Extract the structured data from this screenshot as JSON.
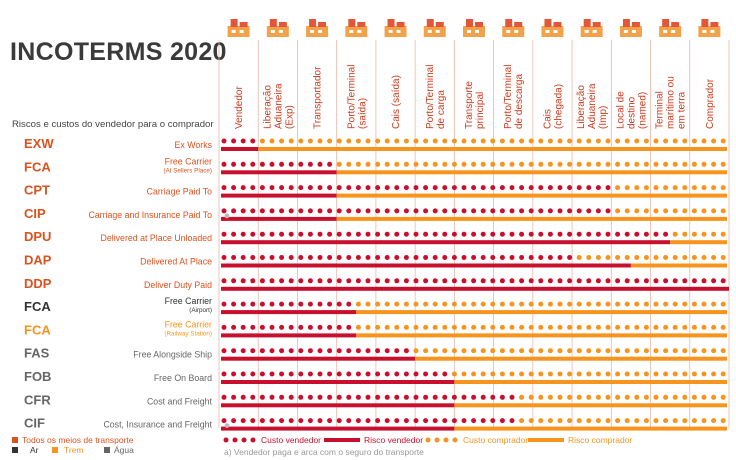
{
  "title": "INCOTERMS 2020",
  "subtitle": "Riscos e custos do vendedor para o comprador",
  "colors": {
    "seller": "#c8102e",
    "buyer": "#f7941d",
    "accent": "#d9531e",
    "dark": "#333333",
    "gray": "#666666"
  },
  "columns": [
    {
      "label": "Vendedor",
      "icon": "factory-icon"
    },
    {
      "label": "Liberação Aduaneira (Exp)",
      "icon": "customs-officer-icon"
    },
    {
      "label": "Transportador",
      "icon": "truck-icon"
    },
    {
      "label": "Porto/Terminal (saída)",
      "icon": "airplane-terminal-icon"
    },
    {
      "label": "Cais (saída)",
      "icon": "port-crane-icon"
    },
    {
      "label": "Porto/Terminal de carga",
      "icon": "ship-crane-icon"
    },
    {
      "label": "Transporte principal",
      "icon": "cargo-ship-icon"
    },
    {
      "label": "Porto/Terminal de descarga",
      "icon": "ship-unload-icon"
    },
    {
      "label": "Cais (chegada)",
      "icon": "port-crane-arrival-icon"
    },
    {
      "label": "Liberação Aduaneira (Imp)",
      "icon": "customs-import-icon"
    },
    {
      "label": "Local de destino (named)",
      "icon": "warehouse-icon"
    },
    {
      "label": "Terminal marítimo ou em terra",
      "icon": "train-icon"
    },
    {
      "label": "Comprador",
      "icon": "buyer-factory-icon"
    }
  ],
  "chart_data": {
    "type": "table",
    "title": "INCOTERMS 2020",
    "subtitle": "Riscos e custos do vendedor para o comprador",
    "rows": [
      {
        "code": "EXW",
        "name": "Ex Works",
        "sub": "",
        "transport": "all",
        "seller_cost_end": 1,
        "seller_risk_end": 1
      },
      {
        "code": "FCA",
        "name": "Free Carrier",
        "sub": "(At Sellers Place)",
        "transport": "all",
        "seller_cost_end": 3,
        "seller_risk_end": 3
      },
      {
        "code": "CPT",
        "name": "Carriage Paid To",
        "sub": "",
        "transport": "all",
        "seller_cost_end": 10,
        "seller_risk_end": 3
      },
      {
        "code": "CIP",
        "name": "Carriage and Insurance Paid To",
        "sub": "",
        "transport": "all",
        "seller_cost_end": 10,
        "seller_risk_end": 3,
        "insurance_note": true
      },
      {
        "code": "DPU",
        "name": "Delivered at Place Unloaded",
        "sub": "",
        "transport": "all",
        "seller_cost_end": 11.5,
        "seller_risk_end": 11.5
      },
      {
        "code": "DAP",
        "name": "Delivered At Place",
        "sub": "",
        "transport": "all",
        "seller_cost_end": 9,
        "seller_risk_end": 10.5
      },
      {
        "code": "DDP",
        "name": "Deliver Duty Paid",
        "sub": "",
        "transport": "all",
        "seller_cost_end": 13,
        "seller_risk_end": 13
      },
      {
        "code": "FCA",
        "name": "Free Carrier",
        "sub": "(Airport)",
        "transport": "air",
        "seller_cost_end": 3.5,
        "seller_risk_end": 3.5
      },
      {
        "code": "FCA",
        "name": "Free Carrier",
        "sub": "(Railway Station)",
        "transport": "rail",
        "seller_cost_end": 3.5,
        "seller_risk_end": 3.5
      },
      {
        "code": "FAS",
        "name": "Free Alongside Ship",
        "sub": "",
        "transport": "water",
        "seller_cost_end": 5,
        "seller_risk_end": 5
      },
      {
        "code": "FOB",
        "name": "Free On Board",
        "sub": "",
        "transport": "water",
        "seller_cost_end": 6,
        "seller_risk_end": 6
      },
      {
        "code": "CFR",
        "name": "Cost and Freight",
        "sub": "",
        "transport": "water",
        "seller_cost_end": 7.5,
        "seller_risk_end": 6
      },
      {
        "code": "CIF",
        "name": "Cost, Insurance and Freight",
        "sub": "",
        "transport": "water",
        "seller_cost_end": 7.5,
        "seller_risk_end": 6,
        "insurance_note": true
      }
    ]
  },
  "legend": {
    "all": "Todos os meios de transporte",
    "air": "Ar",
    "rail": "Trem",
    "water": "Água",
    "seller_cost": "Custo vendedor",
    "seller_risk": "Risco vendedor",
    "buyer_cost": "Custo comprador",
    "buyer_risk": "Risco comprador",
    "note": "a) Vendedor paga e arca com o seguro do transporte"
  }
}
